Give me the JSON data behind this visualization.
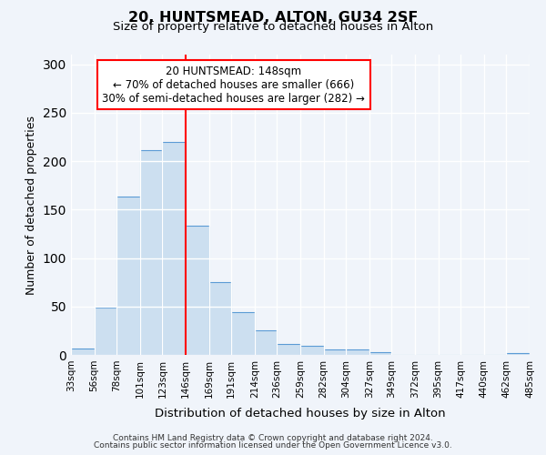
{
  "title": "20, HUNTSMEAD, ALTON, GU34 2SF",
  "subtitle": "Size of property relative to detached houses in Alton",
  "xlabel": "Distribution of detached houses by size in Alton",
  "ylabel": "Number of detached properties",
  "bar_color": "#ccdff0",
  "bar_edge_color": "#5b9bd5",
  "background_color": "#f0f4fa",
  "grid_color": "#ffffff",
  "vline_x": 146,
  "vline_color": "red",
  "bin_edges": [
    33,
    56,
    78,
    101,
    123,
    146,
    169,
    191,
    214,
    236,
    259,
    282,
    304,
    327,
    349,
    372,
    395,
    417,
    440,
    462,
    485
  ],
  "bar_heights": [
    7,
    49,
    163,
    211,
    220,
    133,
    75,
    44,
    25,
    11,
    9,
    6,
    6,
    3,
    0,
    0,
    0,
    0,
    0,
    2
  ],
  "ylim": [
    0,
    310
  ],
  "yticks": [
    0,
    50,
    100,
    150,
    200,
    250,
    300
  ],
  "annotation_title": "20 HUNTSMEAD: 148sqm",
  "annotation_line1": "← 70% of detached houses are smaller (666)",
  "annotation_line2": "30% of semi-detached houses are larger (282) →",
  "annotation_box_color": "white",
  "annotation_box_edge_color": "red",
  "footer_line1": "Contains HM Land Registry data © Crown copyright and database right 2024.",
  "footer_line2": "Contains public sector information licensed under the Open Government Licence v3.0.",
  "tick_labels": [
    "33sqm",
    "56sqm",
    "78sqm",
    "101sqm",
    "123sqm",
    "146sqm",
    "169sqm",
    "191sqm",
    "214sqm",
    "236sqm",
    "259sqm",
    "282sqm",
    "304sqm",
    "327sqm",
    "349sqm",
    "372sqm",
    "395sqm",
    "417sqm",
    "440sqm",
    "462sqm",
    "485sqm"
  ]
}
